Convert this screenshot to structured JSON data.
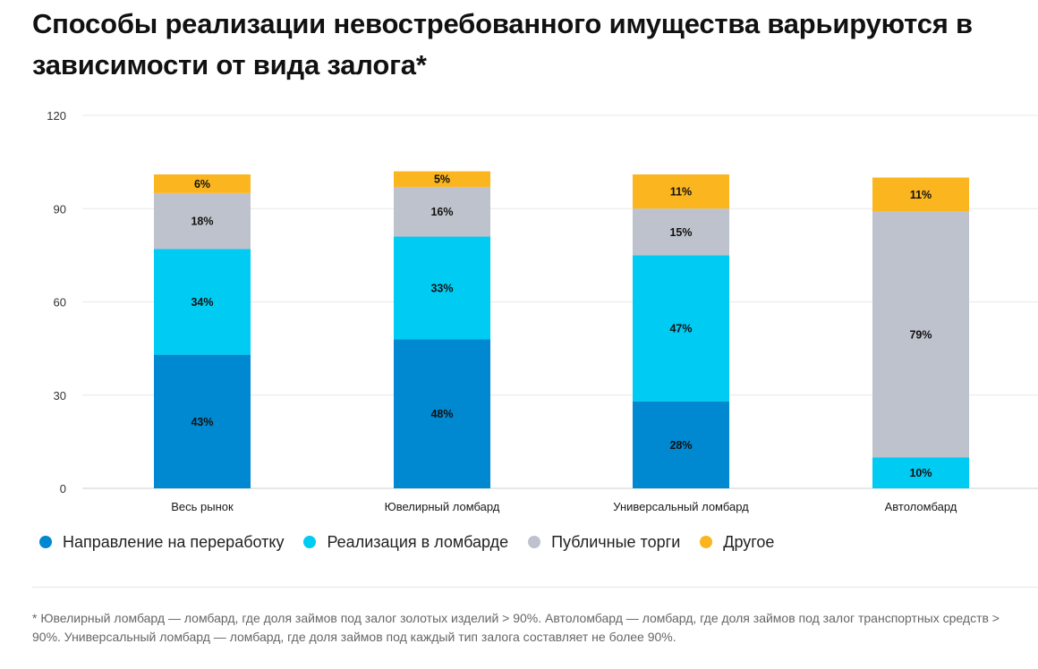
{
  "title": "Способы реализации невостребованного имущества варьируются в зависимости от вида залога*",
  "chart_data": {
    "type": "bar",
    "stacked": true,
    "categories": [
      "Весь рынок",
      "Ювелирный ломбард",
      "Универсальный ломбард",
      "Автоломбард"
    ],
    "series": [
      {
        "name": "Направление на переработку",
        "color": "#0088D1",
        "values": [
          43,
          48,
          28,
          0
        ]
      },
      {
        "name": "Реализация в ломбарде",
        "color": "#00CBF2",
        "values": [
          34,
          33,
          47,
          10
        ]
      },
      {
        "name": "Публичные торги",
        "color": "#BEC2CC",
        "values": [
          18,
          16,
          15,
          79
        ]
      },
      {
        "name": "Другое",
        "color": "#FBB51F",
        "values": [
          6,
          5,
          11,
          11
        ]
      }
    ],
    "data_labels": [
      [
        "43%",
        "48%",
        "28%",
        ""
      ],
      [
        "34%",
        "33%",
        "47%",
        "10%"
      ],
      [
        "18%",
        "16%",
        "15%",
        "79%"
      ],
      [
        "6%",
        "5%",
        "11%",
        "11%"
      ]
    ],
    "ylim": [
      0,
      120
    ],
    "yticks": [
      0,
      30,
      60,
      90,
      120
    ],
    "xlabel": "",
    "ylabel": "",
    "legend_position": "bottom-left",
    "grid": true
  },
  "footnote": "* Ювелирный ломбард — ломбард, где доля займов под залог золотых изделий > 90%. Автоломбард — ломбард, где доля займов под залог транспортных средств > 90%. Универсальный ломбард — ломбард, где доля займов под каждый тип залога составляет не более 90%."
}
